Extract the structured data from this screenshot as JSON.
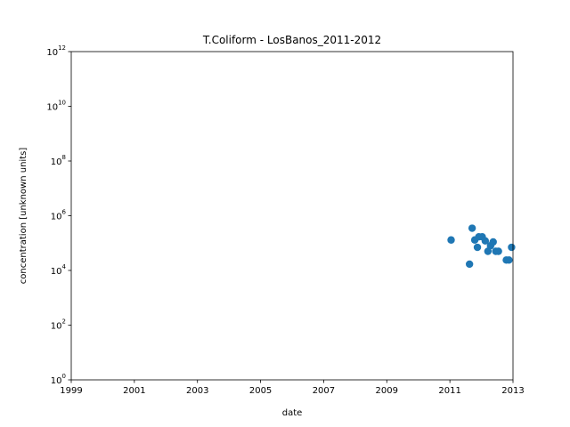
{
  "chart_data": {
    "type": "scatter",
    "title": "T.Coliform - LosBanos_2011-2012",
    "xlabel": "date",
    "ylabel": "concentration [unknown units]",
    "xlim": [
      "1999",
      "2013"
    ],
    "x_ticks": [
      "1999",
      "2001",
      "2003",
      "2005",
      "2007",
      "2009",
      "2011",
      "2013"
    ],
    "ylim": [
      1,
      1000000000000
    ],
    "y_scale": "log",
    "y_ticks": [
      {
        "base": "10",
        "exp": "0"
      },
      {
        "base": "10",
        "exp": "2"
      },
      {
        "base": "10",
        "exp": "4"
      },
      {
        "base": "10",
        "exp": "6"
      },
      {
        "base": "10",
        "exp": "8"
      },
      {
        "base": "10",
        "exp": "10"
      },
      {
        "base": "10",
        "exp": "12"
      }
    ],
    "grid": false,
    "marker_color": "#1f77b4",
    "series": [
      {
        "points": [
          {
            "x": "2011-01-15",
            "y": 130000
          },
          {
            "x": "2011-08-15",
            "y": 17000
          },
          {
            "x": "2011-09-15",
            "y": 350000
          },
          {
            "x": "2011-10-15",
            "y": 130000
          },
          {
            "x": "2011-11-15",
            "y": 70000
          },
          {
            "x": "2011-12-01",
            "y": 170000
          },
          {
            "x": "2012-01-10",
            "y": 170000
          },
          {
            "x": "2012-02-15",
            "y": 120000
          },
          {
            "x": "2012-03-15",
            "y": 50000
          },
          {
            "x": "2012-04-15",
            "y": 80000
          },
          {
            "x": "2012-05-15",
            "y": 110000
          },
          {
            "x": "2012-06-15",
            "y": 50000
          },
          {
            "x": "2012-07-15",
            "y": 50000
          },
          {
            "x": "2012-10-15",
            "y": 24000
          },
          {
            "x": "2012-11-15",
            "y": 24000
          },
          {
            "x": "2012-12-15",
            "y": 70000
          }
        ]
      }
    ]
  }
}
